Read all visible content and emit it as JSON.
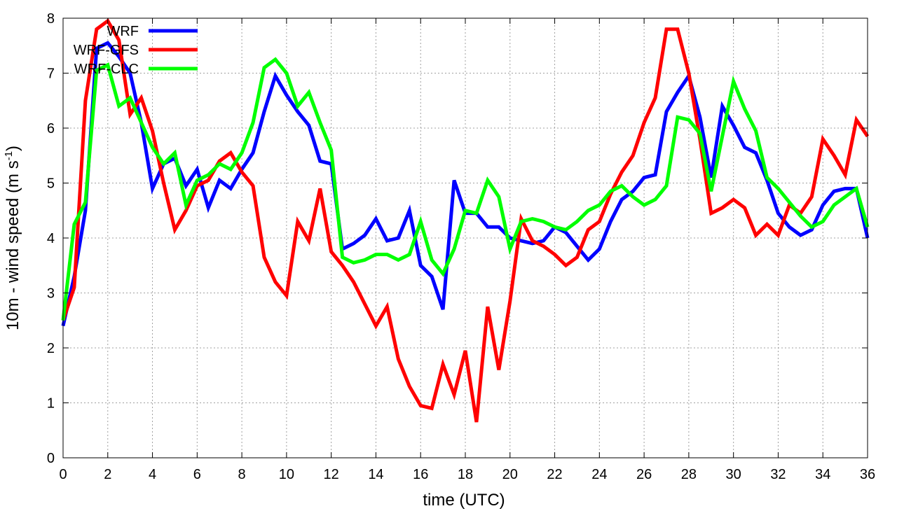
{
  "chart_data": {
    "type": "line",
    "xlabel": "time (UTC)",
    "ylabel": "10m - wind speed  (m s",
    "ylabel_sup": "-1",
    "ylabel_tail": ")",
    "xlim": [
      0,
      36
    ],
    "ylim": [
      0,
      8
    ],
    "xticks": [
      0,
      2,
      4,
      6,
      8,
      10,
      12,
      14,
      16,
      18,
      20,
      22,
      24,
      26,
      28,
      30,
      32,
      34,
      36
    ],
    "yticks": [
      0,
      1,
      2,
      3,
      4,
      5,
      6,
      7,
      8
    ],
    "grid": true,
    "legend_position": "top-left",
    "series": [
      {
        "name": "WRF",
        "color": "#0000ff",
        "x": [
          0,
          0.5,
          1,
          1.5,
          2,
          2.5,
          3,
          3.5,
          4,
          4.5,
          5,
          5.5,
          6,
          6.5,
          7,
          7.5,
          8,
          8.5,
          9,
          9.5,
          10,
          10.5,
          11,
          11.5,
          12,
          12.5,
          13,
          13.5,
          14,
          14.5,
          15,
          15.5,
          16,
          16.5,
          17,
          17.5,
          18,
          18.5,
          19,
          19.5,
          20,
          20.5,
          21,
          21.5,
          22,
          22.5,
          23,
          23.5,
          24,
          24.5,
          25,
          25.5,
          26,
          26.5,
          27,
          27.5,
          28,
          28.5,
          29,
          29.5,
          30,
          30.5,
          31,
          31.5,
          32,
          32.5,
          33,
          33.5,
          34,
          34.5,
          35,
          35.5,
          36
        ],
        "y": [
          2.4,
          3.3,
          4.5,
          7.45,
          7.55,
          7.3,
          7.0,
          6.1,
          4.9,
          5.35,
          5.45,
          4.95,
          5.25,
          4.55,
          5.05,
          4.9,
          5.25,
          5.55,
          6.3,
          6.95,
          6.6,
          6.3,
          6.05,
          5.4,
          5.35,
          3.8,
          3.9,
          4.05,
          4.35,
          3.95,
          4.0,
          4.5,
          3.5,
          3.3,
          2.7,
          5.05,
          4.45,
          4.45,
          4.2,
          4.2,
          4.0,
          3.95,
          3.9,
          3.95,
          4.2,
          4.1,
          3.85,
          3.6,
          3.8,
          4.3,
          4.7,
          4.85,
          5.1,
          5.15,
          6.3,
          6.65,
          6.95,
          6.2,
          5.1,
          6.4,
          6.05,
          5.65,
          5.55,
          5.05,
          4.45,
          4.2,
          4.05,
          4.15,
          4.6,
          4.85,
          4.9,
          4.9,
          4.0
        ]
      },
      {
        "name": "WRF-GFS",
        "color": "#ff0000",
        "x": [
          0,
          0.5,
          1,
          1.5,
          2,
          2.5,
          3,
          3.5,
          4,
          4.5,
          5,
          5.5,
          6,
          6.5,
          7,
          7.5,
          8,
          8.5,
          9,
          9.5,
          10,
          10.5,
          11,
          11.5,
          12,
          12.5,
          13,
          13.5,
          14,
          14.5,
          15,
          15.5,
          16,
          16.5,
          17,
          17.5,
          18,
          18.5,
          19,
          19.5,
          20,
          20.5,
          21,
          21.5,
          22,
          22.5,
          23,
          23.5,
          24,
          24.5,
          25,
          25.5,
          26,
          26.5,
          27,
          27.5,
          28,
          28.5,
          29,
          29.5,
          30,
          30.5,
          31,
          31.5,
          32,
          32.5,
          33,
          33.5,
          34,
          34.5,
          35,
          35.5,
          36
        ],
        "y": [
          2.5,
          3.1,
          6.5,
          7.8,
          7.95,
          7.6,
          6.25,
          6.55,
          5.95,
          5.0,
          4.15,
          4.5,
          4.95,
          5.05,
          5.4,
          5.55,
          5.2,
          4.95,
          3.65,
          3.2,
          2.95,
          4.3,
          3.95,
          4.9,
          3.75,
          3.5,
          3.2,
          2.8,
          2.4,
          2.75,
          1.8,
          1.3,
          0.95,
          0.9,
          1.7,
          1.15,
          1.95,
          0.65,
          2.75,
          1.6,
          2.85,
          4.35,
          3.95,
          3.85,
          3.7,
          3.5,
          3.65,
          4.15,
          4.3,
          4.8,
          5.2,
          5.5,
          6.1,
          6.55,
          7.8,
          7.8,
          7.0,
          5.8,
          4.45,
          4.55,
          4.7,
          4.55,
          4.05,
          4.25,
          4.05,
          4.6,
          4.45,
          4.75,
          5.8,
          5.5,
          5.15,
          6.15,
          5.85
        ]
      },
      {
        "name": "WRF-CLC",
        "color": "#00ff00",
        "x": [
          0,
          0.5,
          1,
          1.5,
          2,
          2.5,
          3,
          3.5,
          4,
          4.5,
          5,
          5.5,
          6,
          6.5,
          7,
          7.5,
          8,
          8.5,
          9,
          9.5,
          10,
          10.5,
          11,
          11.5,
          12,
          12.5,
          13,
          13.5,
          14,
          14.5,
          15,
          15.5,
          16,
          16.5,
          17,
          17.5,
          18,
          18.5,
          19,
          19.5,
          20,
          20.5,
          21,
          21.5,
          22,
          22.5,
          23,
          23.5,
          24,
          24.5,
          25,
          25.5,
          26,
          26.5,
          27,
          27.5,
          28,
          28.5,
          29,
          29.5,
          30,
          30.5,
          31,
          31.5,
          32,
          32.5,
          33,
          33.5,
          34,
          34.5,
          35,
          35.5,
          36
        ],
        "y": [
          2.5,
          4.25,
          4.65,
          7.05,
          7.15,
          6.4,
          6.55,
          6.1,
          5.65,
          5.35,
          5.55,
          4.6,
          5.05,
          5.15,
          5.35,
          5.25,
          5.55,
          6.1,
          7.1,
          7.25,
          7.0,
          6.4,
          6.65,
          6.1,
          5.6,
          3.65,
          3.55,
          3.6,
          3.7,
          3.7,
          3.6,
          3.7,
          4.3,
          3.6,
          3.35,
          3.8,
          4.5,
          4.45,
          5.05,
          4.75,
          3.8,
          4.3,
          4.35,
          4.3,
          4.2,
          4.15,
          4.3,
          4.5,
          4.6,
          4.85,
          4.95,
          4.75,
          4.6,
          4.7,
          4.95,
          6.2,
          6.15,
          5.9,
          4.85,
          5.85,
          6.85,
          6.35,
          5.95,
          5.1,
          4.9,
          4.65,
          4.4,
          4.2,
          4.3,
          4.6,
          4.75,
          4.9,
          4.2
        ]
      }
    ]
  }
}
